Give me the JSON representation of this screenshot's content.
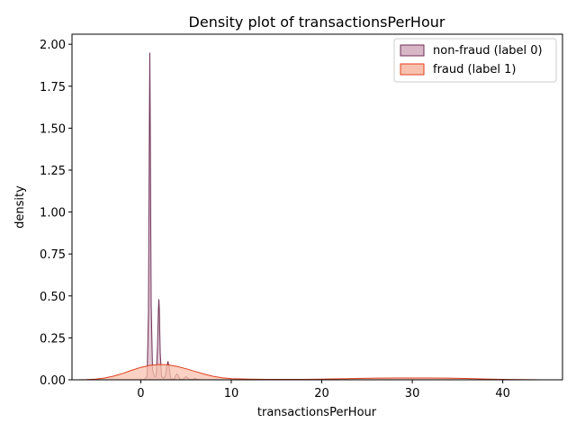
{
  "chart_data": {
    "type": "area",
    "title": "Density plot of transactionsPerHour",
    "xlabel": "transactionsPerHour",
    "ylabel": "density",
    "xlim": [
      -7.6,
      46.6
    ],
    "ylim": [
      0,
      2.06
    ],
    "xticks": [
      0,
      10,
      20,
      30,
      40
    ],
    "yticks": [
      0,
      0.25,
      0.5,
      0.75,
      1.0,
      1.25,
      1.5,
      1.75,
      2.0
    ],
    "xtick_labels": [
      "0",
      "10",
      "20",
      "30",
      "40"
    ],
    "ytick_labels": [
      "0.00",
      "0.25",
      "0.50",
      "0.75",
      "1.00",
      "1.25",
      "1.50",
      "1.75",
      "2.00"
    ],
    "grid": false,
    "legend_position": "top-right",
    "series": [
      {
        "name": "non-fraud (label 0)",
        "line_color": "#6d2f56",
        "fill_color": "#d8b6c6",
        "x": [
          0.0,
          0.4,
          0.7,
          0.85,
          0.95,
          1.0,
          1.05,
          1.15,
          1.3,
          1.5,
          1.7,
          1.85,
          1.95,
          2.0,
          2.05,
          2.15,
          2.3,
          2.5,
          2.7,
          2.85,
          3.0,
          3.15,
          3.3,
          3.5,
          3.7,
          3.85,
          4.0,
          4.15,
          4.3,
          4.5,
          4.7,
          4.85,
          5.0,
          5.15,
          5.3,
          5.6,
          5.85,
          6.0,
          6.15,
          6.4,
          7.0
        ],
        "y": [
          0.0,
          0.002,
          0.02,
          0.4,
          1.5,
          1.95,
          1.5,
          0.45,
          0.06,
          0.02,
          0.02,
          0.2,
          0.42,
          0.48,
          0.42,
          0.16,
          0.02,
          0.01,
          0.02,
          0.07,
          0.11,
          0.07,
          0.01,
          0.003,
          0.005,
          0.025,
          0.035,
          0.025,
          0.005,
          0.002,
          0.004,
          0.013,
          0.018,
          0.013,
          0.004,
          0.002,
          0.005,
          0.008,
          0.005,
          0.001,
          0.0
        ]
      },
      {
        "name": "fraud (label 1)",
        "line_color": "#e0401e",
        "fill_color": "#f8c1ad",
        "x": [
          -7.0,
          -6.0,
          -5.0,
          -4.0,
          -3.0,
          -2.0,
          -1.0,
          0.0,
          1.0,
          2.0,
          3.0,
          4.0,
          5.0,
          6.0,
          7.0,
          8.0,
          9.0,
          10.0,
          12.0,
          14.0,
          16.0,
          18.0,
          20.0,
          22.0,
          24.0,
          26.0,
          28.0,
          30.0,
          32.0,
          34.0,
          36.0,
          38.0,
          40.0,
          42.0,
          44.3
        ],
        "y": [
          0.0,
          0.001,
          0.004,
          0.011,
          0.022,
          0.038,
          0.057,
          0.074,
          0.086,
          0.091,
          0.089,
          0.08,
          0.066,
          0.05,
          0.034,
          0.021,
          0.012,
          0.007,
          0.004,
          0.003,
          0.003,
          0.003,
          0.004,
          0.006,
          0.008,
          0.01,
          0.011,
          0.011,
          0.011,
          0.01,
          0.008,
          0.005,
          0.003,
          0.001,
          0.0
        ]
      }
    ]
  }
}
